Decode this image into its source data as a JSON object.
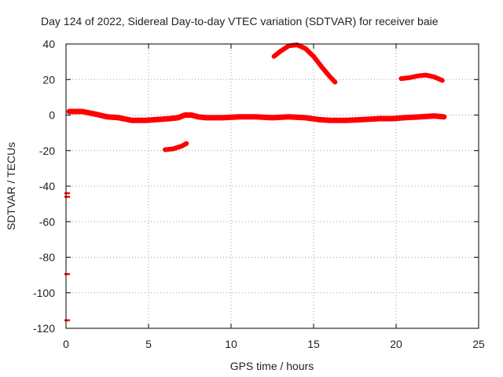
{
  "chart_data": {
    "type": "scatter",
    "title": "Day 124 of 2022, Sidereal Day-to-day VTEC variation (SDTVAR) for receiver baie",
    "xlabel": "GPS time / hours",
    "ylabel": "SDTVAR / TECUs",
    "xlim": [
      0,
      25
    ],
    "ylim": [
      -120,
      40
    ],
    "xticks": [
      0,
      5,
      10,
      15,
      20,
      25
    ],
    "yticks": [
      -120,
      -100,
      -80,
      -60,
      -40,
      -20,
      0,
      20,
      40
    ],
    "grid": true,
    "legend": "none",
    "series_color": "#ff0000",
    "series": [
      {
        "name": "main band",
        "points": [
          [
            0.2,
            2
          ],
          [
            1.0,
            2
          ],
          [
            1.8,
            0.5
          ],
          [
            2.5,
            -1
          ],
          [
            3.2,
            -1.5
          ],
          [
            4.0,
            -3
          ],
          [
            4.8,
            -3
          ],
          [
            5.5,
            -2.5
          ],
          [
            6.3,
            -2
          ],
          [
            6.8,
            -1.5
          ],
          [
            7.2,
            0
          ],
          [
            7.6,
            0
          ],
          [
            8.0,
            -1
          ],
          [
            8.5,
            -1.5
          ],
          [
            9.5,
            -1.5
          ],
          [
            10.5,
            -1
          ],
          [
            11.5,
            -1
          ],
          [
            12.5,
            -1.5
          ],
          [
            13.5,
            -1
          ],
          [
            14.5,
            -1.5
          ],
          [
            15.3,
            -2.5
          ],
          [
            16.0,
            -3
          ],
          [
            17.0,
            -3
          ],
          [
            18.0,
            -2.5
          ],
          [
            19.0,
            -2
          ],
          [
            19.8,
            -2
          ],
          [
            20.5,
            -1.5
          ],
          [
            21.5,
            -1
          ],
          [
            22.3,
            -0.5
          ],
          [
            22.9,
            -1
          ]
        ]
      },
      {
        "name": "lower arc",
        "points": [
          [
            6.0,
            -19.5
          ],
          [
            6.5,
            -19
          ],
          [
            7.0,
            -17.5
          ],
          [
            7.3,
            -16
          ]
        ]
      },
      {
        "name": "upper arc",
        "points": [
          [
            12.6,
            33
          ],
          [
            13.0,
            36
          ],
          [
            13.5,
            39
          ],
          [
            14.0,
            39.5
          ],
          [
            14.5,
            37.5
          ],
          [
            15.0,
            33
          ],
          [
            15.5,
            27
          ],
          [
            16.0,
            21.5
          ],
          [
            16.3,
            18.5
          ]
        ]
      },
      {
        "name": "right arc",
        "points": [
          [
            20.3,
            20.5
          ],
          [
            20.8,
            21
          ],
          [
            21.3,
            22
          ],
          [
            21.8,
            22.5
          ],
          [
            22.3,
            21.5
          ],
          [
            22.8,
            19.5
          ]
        ]
      },
      {
        "name": "outliers at x=0",
        "points": [
          [
            0,
            -44
          ],
          [
            0,
            -46
          ],
          [
            0,
            -89.5
          ],
          [
            0,
            -115.5
          ]
        ]
      }
    ]
  }
}
